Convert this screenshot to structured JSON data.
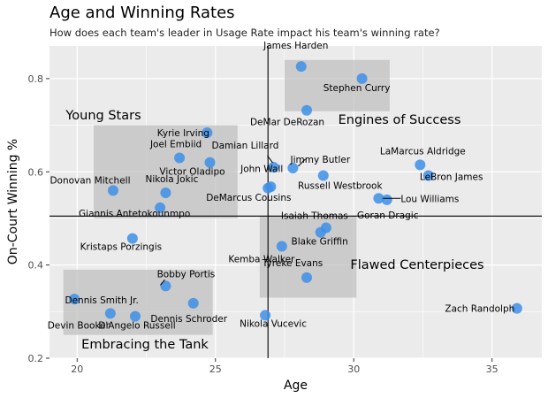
{
  "title": "Age and Winning Rates",
  "subtitle": "How does each team's leader in Usage Rate impact his team's winning rate?",
  "colors": {
    "panel": "#ebebeb",
    "grid": "#ffffff",
    "point": "#3d8fe6",
    "region": "#bdbdbd",
    "refline": "#000000"
  },
  "chart_data": {
    "type": "scatter",
    "xlabel": "Age",
    "ylabel": "On-Court Winning %",
    "xlim": [
      19.0,
      36.8
    ],
    "ylim": [
      0.2,
      0.87
    ],
    "xticks": [
      20,
      25,
      30,
      35
    ],
    "yticks": [
      0.2,
      0.4,
      0.6,
      0.8
    ],
    "xtick_labels": [
      "20",
      "25",
      "30",
      "35"
    ],
    "ytick_labels": [
      "0.2",
      "0.4",
      "0.6",
      "0.8"
    ],
    "vline": 26.9,
    "hline": 0.505,
    "points": [
      {
        "name": "James Harden",
        "x": 28.1,
        "y": 0.826
      },
      {
        "name": "Stephen Curry",
        "x": 30.3,
        "y": 0.8
      },
      {
        "name": "DeMar DeRozan",
        "x": 28.3,
        "y": 0.732
      },
      {
        "name": "Kyrie Irving",
        "x": 24.7,
        "y": 0.684
      },
      {
        "name": "Joel Embiid",
        "x": 23.7,
        "y": 0.63
      },
      {
        "name": "Victor Oladipo",
        "x": 24.8,
        "y": 0.62
      },
      {
        "name": "Damian Lillard",
        "x": 27.1,
        "y": 0.61
      },
      {
        "name": "Jimmy Butler",
        "x": 27.8,
        "y": 0.608
      },
      {
        "name": "LaMarcus Aldridge",
        "x": 32.4,
        "y": 0.615
      },
      {
        "name": "LeBron James",
        "x": 32.7,
        "y": 0.592
      },
      {
        "name": "Russell Westbrook",
        "x": 28.9,
        "y": 0.592
      },
      {
        "name": "John Wall",
        "x": 26.9,
        "y": 0.565
      },
      {
        "name": "DeMarcus Cousins",
        "x": 27.0,
        "y": 0.568
      },
      {
        "name": "Donovan Mitchell",
        "x": 21.3,
        "y": 0.56
      },
      {
        "name": "Nikola Jokic",
        "x": 23.2,
        "y": 0.555
      },
      {
        "name": "Lou Williams",
        "x": 30.9,
        "y": 0.543
      },
      {
        "name": "Goran Dragic",
        "x": 31.2,
        "y": 0.54
      },
      {
        "name": "Giannis Antetokounmpo",
        "x": 23.0,
        "y": 0.523
      },
      {
        "name": "Isaiah Thomas",
        "x": 29.0,
        "y": 0.48
      },
      {
        "name": "Blake Griffin",
        "x": 28.8,
        "y": 0.47
      },
      {
        "name": "Kristaps Porzingis",
        "x": 22.0,
        "y": 0.457
      },
      {
        "name": "Kemba Walker",
        "x": 27.4,
        "y": 0.44
      },
      {
        "name": "Tyreke Evans",
        "x": 28.3,
        "y": 0.373
      },
      {
        "name": "Bobby Portis",
        "x": 23.2,
        "y": 0.355
      },
      {
        "name": "Dennis Smith Jr.",
        "x": 19.9,
        "y": 0.327
      },
      {
        "name": "Dennis Schroder",
        "x": 24.2,
        "y": 0.318
      },
      {
        "name": "Devin Booker",
        "x": 21.2,
        "y": 0.296
      },
      {
        "name": "D'Angelo Russell",
        "x": 22.1,
        "y": 0.29
      },
      {
        "name": "Nikola Vucevic",
        "x": 26.8,
        "y": 0.292
      },
      {
        "name": "Zach Randolph",
        "x": 35.9,
        "y": 0.307
      }
    ],
    "regions": [
      {
        "label": "Young Stars",
        "x0": 20.6,
        "x1": 25.8,
        "y0": 0.5,
        "y1": 0.7
      },
      {
        "label": "Engines of Success",
        "x0": 27.5,
        "x1": 31.3,
        "y0": 0.73,
        "y1": 0.84
      },
      {
        "label": "Flawed Centerpieces",
        "x0": 26.6,
        "x1": 30.1,
        "y0": 0.33,
        "y1": 0.505
      },
      {
        "label": "Embracing the Tank",
        "x0": 19.5,
        "x1": 24.9,
        "y0": 0.25,
        "y1": 0.39
      }
    ]
  }
}
